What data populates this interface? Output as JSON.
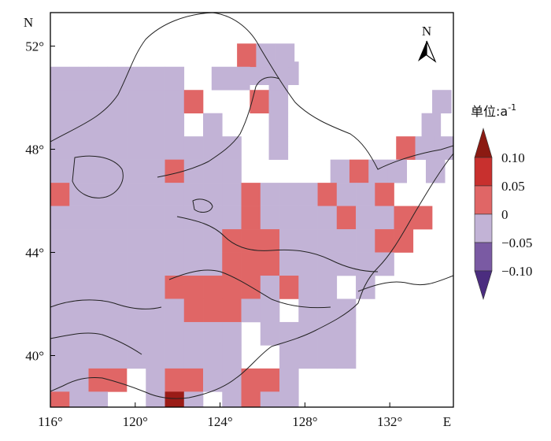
{
  "map": {
    "axis": {
      "y_title": "N",
      "x_title": "E",
      "y_ticks": [
        {
          "value": 52,
          "label": "52°"
        },
        {
          "value": 48,
          "label": "48°"
        },
        {
          "value": 44,
          "label": "44°"
        },
        {
          "value": 40,
          "label": "40°"
        }
      ],
      "x_ticks": [
        {
          "value": 116,
          "label": "116°"
        },
        {
          "value": 120,
          "label": "120°"
        },
        {
          "value": 124,
          "label": "124°"
        },
        {
          "value": 128,
          "label": "128°"
        },
        {
          "value": 132,
          "label": "132°"
        }
      ]
    },
    "north_arrow_label": "N",
    "legend": {
      "title": "单位:a",
      "title_superscript": "-1",
      "labels": [
        "0.10",
        "0.05",
        "0",
        "−0.05",
        "−0.10"
      ],
      "classes": [
        {
          "range": "0.05 to 0.10",
          "color": "#c8302e"
        },
        {
          "range": "0 to 0.05",
          "color": "#e06666"
        },
        {
          "range": "-0.05 to 0",
          "color": "#c2b3d6"
        },
        {
          "range": "-0.10 to -0.05",
          "color": "#7a5aa3"
        }
      ],
      "upper_arrow_color": "#8b1a12",
      "lower_arrow_color": "#4b2d7f"
    },
    "colors": {
      "negative_weak": "#c2b3d6",
      "positive_weak": "#e06666",
      "positive_strong": "#9b1c17",
      "boundary": "#222222"
    },
    "grid": {
      "lon_min": 116,
      "lon_max": 135,
      "lat_min": 38,
      "lat_max": 53.3,
      "cell_deg": 0.9
    },
    "cell_rows": [
      {
        "lat": 50.5,
        "lon": [
          125.0,
          125.9,
          126.8
        ],
        "cls": [
          "n",
          "n",
          "n"
        ]
      },
      {
        "lat": 51.2,
        "lon": [
          124.8,
          125.7,
          126.6
        ],
        "cls": [
          "p",
          "n",
          "n"
        ]
      },
      {
        "lat": 50.3,
        "lon": [
          116.0,
          116.9,
          117.8,
          118.7,
          119.6,
          120.5,
          121.4,
          123.6,
          124.5,
          126.3
        ],
        "cls": [
          "n",
          "n",
          "n",
          "n",
          "n",
          "n",
          "n",
          "n",
          "n",
          "n"
        ]
      },
      {
        "lat": 49.4,
        "lon": [
          116.0,
          116.9,
          117.8,
          118.7,
          119.6,
          120.5,
          121.4,
          122.3,
          125.4,
          126.3,
          134.0
        ],
        "cls": [
          "n",
          "n",
          "n",
          "n",
          "n",
          "n",
          "n",
          "p",
          "p",
          "n",
          "n"
        ]
      },
      {
        "lat": 48.5,
        "lon": [
          116.0,
          116.9,
          117.8,
          118.7,
          119.6,
          120.5,
          121.4,
          123.2,
          126.3,
          133.5
        ],
        "cls": [
          "n",
          "n",
          "n",
          "n",
          "n",
          "n",
          "n",
          "n",
          "n",
          "n"
        ]
      },
      {
        "lat": 47.6,
        "lon": [
          116.0,
          116.9,
          117.8,
          118.7,
          119.6,
          120.5,
          121.4,
          122.3,
          123.2,
          124.1,
          126.3,
          132.3,
          133.2,
          134.1
        ],
        "cls": [
          "n",
          "n",
          "n",
          "n",
          "n",
          "n",
          "n",
          "n",
          "n",
          "n",
          "n",
          "p",
          "n",
          "n"
        ]
      },
      {
        "lat": 46.7,
        "lon": [
          116.0,
          116.9,
          117.8,
          118.7,
          119.6,
          120.5,
          121.4,
          122.3,
          123.2,
          124.1,
          129.2,
          130.1,
          131.0,
          131.9,
          133.7
        ],
        "cls": [
          "n",
          "n",
          "n",
          "n",
          "n",
          "n",
          "p",
          "n",
          "n",
          "n",
          "n",
          "p",
          "n",
          "n",
          "n"
        ]
      },
      {
        "lat": 45.8,
        "lon": [
          116.0,
          116.9,
          117.8,
          118.7,
          119.6,
          120.5,
          121.4,
          122.3,
          123.2,
          124.1,
          125.0,
          125.9,
          126.8,
          127.7,
          128.6,
          129.5,
          130.4,
          131.3
        ],
        "cls": [
          "p",
          "n",
          "n",
          "n",
          "n",
          "n",
          "n",
          "n",
          "n",
          "n",
          "p",
          "n",
          "n",
          "n",
          "p",
          "n",
          "n",
          "p"
        ]
      },
      {
        "lat": 44.9,
        "lon": [
          116.0,
          116.9,
          117.8,
          118.7,
          119.6,
          120.5,
          121.4,
          122.3,
          123.2,
          124.1,
          125.0,
          125.9,
          126.8,
          127.7,
          128.6,
          129.5,
          130.4,
          131.3,
          132.2,
          133.1
        ],
        "cls": [
          "n",
          "n",
          "n",
          "n",
          "n",
          "n",
          "n",
          "n",
          "n",
          "n",
          "p",
          "n",
          "n",
          "n",
          "n",
          "p",
          "n",
          "n",
          "p",
          "p"
        ]
      },
      {
        "lat": 44.0,
        "lon": [
          116.0,
          116.9,
          117.8,
          118.7,
          119.6,
          120.5,
          121.4,
          122.3,
          123.2,
          124.1,
          125.0,
          125.9,
          126.8,
          127.7,
          128.6,
          129.5,
          130.4,
          131.3,
          132.2
        ],
        "cls": [
          "n",
          "n",
          "n",
          "n",
          "n",
          "n",
          "n",
          "n",
          "n",
          "p",
          "p",
          "p",
          "n",
          "n",
          "n",
          "n",
          "n",
          "p",
          "p"
        ]
      },
      {
        "lat": 43.1,
        "lon": [
          116.0,
          116.9,
          117.8,
          118.7,
          119.6,
          120.5,
          121.4,
          122.3,
          123.2,
          124.1,
          125.0,
          125.9,
          126.8,
          127.7,
          128.6,
          129.5,
          130.4,
          131.3
        ],
        "cls": [
          "n",
          "n",
          "n",
          "n",
          "n",
          "n",
          "n",
          "n",
          "n",
          "p",
          "p",
          "p",
          "n",
          "n",
          "n",
          "n",
          "n",
          "n"
        ]
      },
      {
        "lat": 42.2,
        "lon": [
          116.0,
          116.9,
          117.8,
          118.7,
          119.6,
          120.5,
          121.4,
          122.3,
          123.2,
          124.1,
          125.0,
          125.9,
          126.8,
          127.7,
          128.6,
          130.4
        ],
        "cls": [
          "n",
          "n",
          "n",
          "n",
          "n",
          "n",
          "p",
          "p",
          "p",
          "p",
          "p",
          "n",
          "p",
          "n",
          "n",
          "n"
        ]
      },
      {
        "lat": 41.3,
        "lon": [
          116.0,
          116.9,
          117.8,
          118.7,
          119.6,
          120.5,
          121.4,
          122.3,
          123.2,
          124.1,
          125.0,
          125.9,
          127.7,
          128.6,
          129.5
        ],
        "cls": [
          "n",
          "n",
          "n",
          "n",
          "n",
          "n",
          "n",
          "p",
          "p",
          "p",
          "n",
          "n",
          "n",
          "n",
          "n"
        ]
      },
      {
        "lat": 40.4,
        "lon": [
          116.0,
          116.9,
          117.8,
          118.7,
          119.6,
          120.5,
          121.4,
          122.3,
          123.2,
          124.1,
          125.9,
          126.8,
          127.7,
          128.6,
          129.5
        ],
        "cls": [
          "n",
          "n",
          "n",
          "n",
          "n",
          "n",
          "n",
          "n",
          "n",
          "n",
          "n",
          "n",
          "n",
          "n",
          "n"
        ]
      },
      {
        "lat": 39.5,
        "lon": [
          116.0,
          116.9,
          117.8,
          118.7,
          119.6,
          120.5,
          121.4,
          122.3,
          123.2,
          124.1,
          126.8,
          127.7,
          128.6,
          129.5
        ],
        "cls": [
          "n",
          "n",
          "n",
          "n",
          "n",
          "n",
          "n",
          "n",
          "n",
          "n",
          "n",
          "n",
          "n",
          "n"
        ]
      },
      {
        "lat": 38.6,
        "lon": [
          116.0,
          116.9,
          117.8,
          118.7,
          120.5,
          121.4,
          122.3,
          123.2,
          124.1,
          125.0,
          125.9,
          126.8
        ],
        "cls": [
          "n",
          "n",
          "p",
          "p",
          "n",
          "p",
          "p",
          "n",
          "n",
          "p",
          "p",
          "n"
        ]
      },
      {
        "lat": 37.7,
        "lon": [
          116.0,
          116.9,
          117.8,
          120.5,
          121.4,
          122.3,
          124.1,
          125.0,
          125.9,
          126.8
        ],
        "cls": [
          "p",
          "n",
          "n",
          "n",
          "s",
          "n",
          "n",
          "p",
          "n",
          "n"
        ]
      }
    ]
  }
}
